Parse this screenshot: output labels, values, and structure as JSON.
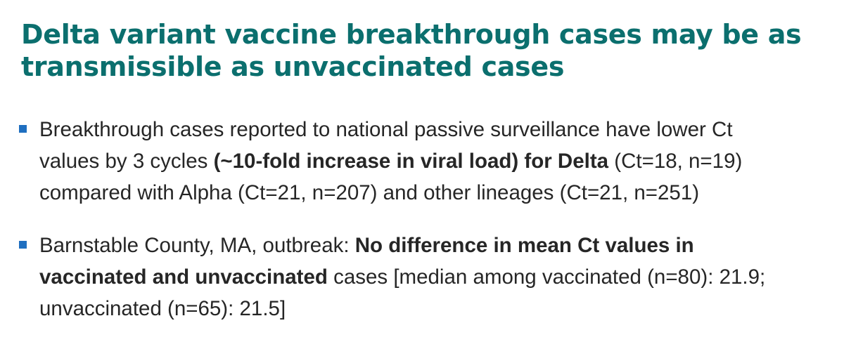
{
  "slide": {
    "title_line_1": "Delta variant vaccine breakthrough cases may be as",
    "title_line_2": "transmissible as unvaccinated cases",
    "bullets": [
      {
        "line_1": "Breakthrough cases reported to national passive surveillance have lower Ct",
        "line_2_prefix": "values by 3 cycles ",
        "line_2_bold": "(~10-fold increase in viral load) for Delta",
        "line_2_suffix": " (Ct=18, n=19)",
        "line_3": "compared with Alpha (Ct=21, n=207) and other lineages (Ct=21, n=251)"
      },
      {
        "line_1_prefix": "Barnstable County, MA, outbreak: ",
        "line_1_bold": "No difference in mean Ct values in",
        "line_2_bold": "vaccinated and unvaccinated",
        "line_2_suffix": " cases [median among vaccinated (n=80): 21.9;",
        "line_3": "unvaccinated (n=65): 21.5]"
      }
    ]
  },
  "colors": {
    "title": "#0b6f6e",
    "bullet_marker": "#1f6fc0",
    "body_text": "#262626"
  }
}
